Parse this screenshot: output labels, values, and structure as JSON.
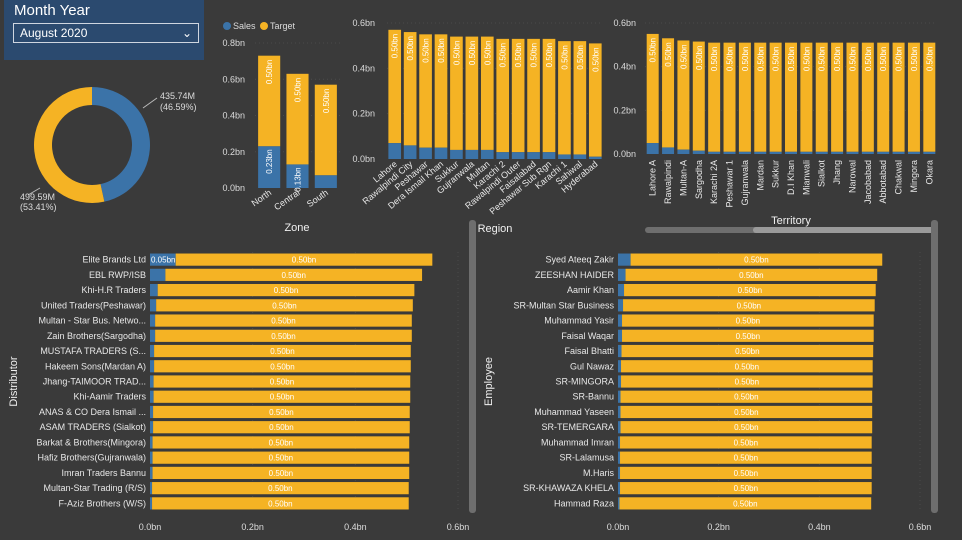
{
  "slicer": {
    "title": "Month Year",
    "value": "August 2020"
  },
  "colors": {
    "sales": "#3b73a8",
    "target": "#f5b324",
    "background": "#3a3a3a"
  },
  "legend": {
    "sales": "Sales",
    "target": "Target"
  },
  "chart_data": [
    {
      "id": "donut",
      "type": "pie",
      "categories": [
        "Sales",
        "Target"
      ],
      "values": [
        435.74,
        499.59
      ],
      "labels": [
        {
          "value": "435.74M",
          "pct": "(46.59%)"
        },
        {
          "value": "499.59M",
          "pct": "(53.41%)"
        }
      ]
    },
    {
      "id": "zone",
      "type": "bar",
      "xlabel": "Zone",
      "categories": [
        "North",
        "Central",
        "South"
      ],
      "series": [
        {
          "name": "Sales",
          "values": [
            0.23,
            0.13,
            0.07
          ]
        },
        {
          "name": "Target",
          "values": [
            0.5,
            0.5,
            0.5
          ]
        }
      ],
      "data_labels_sales": [
        "0.23bn",
        "0.13bn",
        ""
      ],
      "data_labels_target": [
        "0.50bn",
        "0.50bn",
        "0.50bn"
      ],
      "yticks": [
        "0.0bn",
        "0.2bn",
        "0.4bn",
        "0.6bn",
        "0.8bn"
      ],
      "ylim": [
        0,
        0.8
      ]
    },
    {
      "id": "region",
      "type": "bar",
      "xlabel": "Region",
      "categories": [
        "Lahore",
        "Rawalpindi City",
        "Peshawar",
        "Dera Ismail Khan",
        "Sukkur",
        "Gujranwala",
        "Multan",
        "Karachi 2",
        "Rawalpindi Outer",
        "Faisalabad",
        "Peshawar Sub Rgn",
        "Karachi 1",
        "Sahiwal",
        "Hyderabad"
      ],
      "series": [
        {
          "name": "Sales",
          "values": [
            0.07,
            0.06,
            0.05,
            0.05,
            0.04,
            0.04,
            0.04,
            0.03,
            0.03,
            0.03,
            0.03,
            0.02,
            0.02,
            0.01
          ]
        },
        {
          "name": "Target",
          "values": [
            0.5,
            0.5,
            0.5,
            0.5,
            0.5,
            0.5,
            0.5,
            0.5,
            0.5,
            0.5,
            0.5,
            0.5,
            0.5,
            0.5
          ]
        }
      ],
      "data_label": "0.50bn",
      "yticks": [
        "0.0bn",
        "0.2bn",
        "0.4bn",
        "0.6bn"
      ],
      "ylim": [
        0,
        0.6
      ]
    },
    {
      "id": "territory",
      "type": "bar",
      "xlabel": "Territory",
      "categories": [
        "Lahore A",
        "Rawalpindi",
        "Multan-A",
        "Sargodha",
        "Karachi 2A",
        "Peshawar 1",
        "Gujranwala",
        "Mardan",
        "Sukkur",
        "D.I Khan",
        "Mianwali",
        "Sialkot",
        "Jhang",
        "Narowal",
        "Jacobabad",
        "Abbotabad",
        "Chakwal",
        "Mingora",
        "Okara"
      ],
      "series": [
        {
          "name": "Sales",
          "values": [
            0.05,
            0.03,
            0.02,
            0.015,
            0.01,
            0.01,
            0.01,
            0.01,
            0.01,
            0.01,
            0.01,
            0.01,
            0.01,
            0.01,
            0.01,
            0.01,
            0.01,
            0.01,
            0.01
          ]
        },
        {
          "name": "Target",
          "values": [
            0.5,
            0.5,
            0.5,
            0.5,
            0.5,
            0.5,
            0.5,
            0.5,
            0.5,
            0.5,
            0.5,
            0.5,
            0.5,
            0.5,
            0.5,
            0.5,
            0.5,
            0.5,
            0.5
          ]
        }
      ],
      "data_labels_target": [
        "0.50bn",
        "0.50bn",
        "0.50bn",
        "0.50bn",
        "0.50bn",
        "0.50bn",
        "0.50bn",
        "0.50bn",
        "0.50bn",
        "0.50bn",
        "0.50bn",
        "0.50bn",
        "0.50bn",
        "0.50bn",
        "0.50bn",
        "0.50bn",
        "0.50bn",
        "0.50bn",
        "0.50bn"
      ],
      "yticks": [
        "0.0bn",
        "0.2bn",
        "0.4bn",
        "0.6bn"
      ],
      "ylim": [
        0,
        0.6
      ]
    },
    {
      "id": "distributor",
      "type": "bar",
      "orientation": "horizontal",
      "ylabel": "Distributor",
      "categories": [
        "Elite Brands Ltd",
        "EBL RWP/ISB",
        "Khi-H.R Traders",
        "United Traders(Peshawar)",
        "Multan - Star Bus. Netwo...",
        "Zain Brothers(Sargodha)",
        "MUSTAFA TRADERS (S...",
        "Hakeem Sons(Mardan A)",
        "Jhang-TAIMOOR TRAD...",
        "Khi-Aamir Traders",
        "ANAS & CO Dera Ismail ...",
        "ASAM TRADERS (Sialkot)",
        "Barkat & Brothers(Mingora)",
        "Hafiz Brothers(Gujranwala)",
        "Imran Traders Bannu",
        "Multan-Star Trading (R/S)",
        "F-Aziz Brothers (W/S)"
      ],
      "series": [
        {
          "name": "Sales",
          "values": [
            0.05,
            0.03,
            0.015,
            0.012,
            0.01,
            0.01,
            0.008,
            0.008,
            0.007,
            0.007,
            0.006,
            0.006,
            0.005,
            0.005,
            0.005,
            0.004,
            0.004
          ]
        },
        {
          "name": "Target",
          "values": [
            0.5,
            0.5,
            0.5,
            0.5,
            0.5,
            0.5,
            0.5,
            0.5,
            0.5,
            0.5,
            0.5,
            0.5,
            0.5,
            0.5,
            0.5,
            0.5,
            0.5
          ]
        }
      ],
      "data_labels_sales": [
        "0.05bn",
        "",
        "",
        "",
        "",
        "",
        "",
        "",
        "",
        "",
        "",
        "",
        "",
        "",
        "",
        "",
        ""
      ],
      "data_labels_target": [
        "0.50bn",
        "0.50bn",
        "0.50bn",
        "0.50bn",
        "0.50bn",
        "0.50bn",
        "0.50bn",
        "0.50bn",
        "0.50bn",
        "0.50bn",
        "0.50bn",
        "0.50bn",
        "0.50bn",
        "0.50bn",
        "0.50bn",
        "0.50bn",
        "0.50bn"
      ],
      "xticks": [
        "0.0bn",
        "0.2bn",
        "0.4bn",
        "0.6bn"
      ],
      "xlim": [
        0,
        0.6
      ]
    },
    {
      "id": "employee",
      "type": "bar",
      "orientation": "horizontal",
      "ylabel": "Employee",
      "categories": [
        "Syed Ateeq Zakir",
        "ZEESHAN HAIDER",
        "Aamir Khan",
        "SR-Multan Star Business",
        "Muhammad Yasir",
        "Faisal Waqar",
        "Faisal Bhatti",
        "Gul Nawaz",
        "SR-MINGORA",
        "SR-Bannu",
        "Muhammad Yaseen",
        "SR-TEMERGARA",
        "Muhammad Imran",
        "SR-Lalamusa",
        "M.Haris",
        "SR-KHAWAZA KHELA",
        "Hammad Raza"
      ],
      "series": [
        {
          "name": "Sales",
          "values": [
            0.025,
            0.015,
            0.012,
            0.01,
            0.008,
            0.008,
            0.007,
            0.006,
            0.006,
            0.005,
            0.005,
            0.005,
            0.004,
            0.004,
            0.004,
            0.004,
            0.003
          ]
        },
        {
          "name": "Target",
          "values": [
            0.5,
            0.5,
            0.5,
            0.5,
            0.5,
            0.5,
            0.5,
            0.5,
            0.5,
            0.5,
            0.5,
            0.5,
            0.5,
            0.5,
            0.5,
            0.5,
            0.5
          ]
        }
      ],
      "data_labels_target": [
        "0.50bn",
        "0.50bn",
        "0.50bn",
        "0.50bn",
        "0.50bn",
        "0.50bn",
        "0.50bn",
        "0.50bn",
        "0.50bn",
        "0.50bn",
        "0.50bn",
        "0.50bn",
        "0.50bn",
        "0.50bn",
        "0.50bn",
        "0.50bn",
        "0.50bn"
      ],
      "xticks": [
        "0.0bn",
        "0.2bn",
        "0.4bn",
        "0.6bn"
      ],
      "xlim": [
        0,
        0.6
      ]
    }
  ]
}
